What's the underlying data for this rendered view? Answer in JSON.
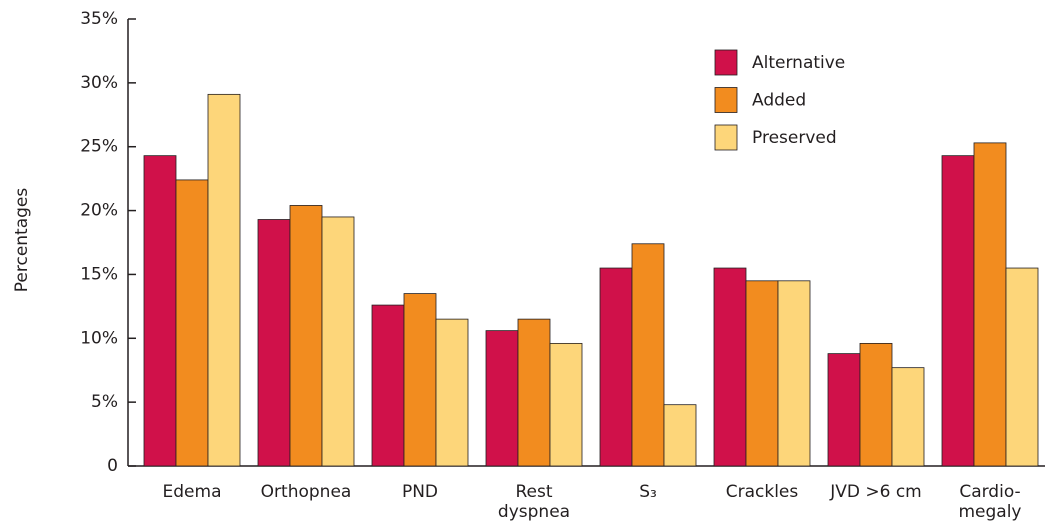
{
  "chart_data": {
    "type": "bar",
    "y_label": "Percentages",
    "categories": [
      "Edema",
      "Orthopnea",
      "PND",
      "Rest dyspnea",
      "S₃",
      "Crackles",
      "JVD >6 cm",
      "Cardio-megaly"
    ],
    "series": [
      {
        "name": "Alternative",
        "color": "#d0114a",
        "values": [
          24.3,
          19.3,
          12.6,
          10.6,
          15.5,
          15.5,
          8.8,
          24.3
        ]
      },
      {
        "name": "Added",
        "color": "#f28c1f",
        "values": [
          22.4,
          20.4,
          13.5,
          11.5,
          17.4,
          14.5,
          9.6,
          25.3
        ]
      },
      {
        "name": "Preserved",
        "color": "#fdd67a",
        "values": [
          29.1,
          19.5,
          11.5,
          9.6,
          4.8,
          14.5,
          7.7,
          15.5
        ]
      }
    ],
    "ylim": [
      0,
      35
    ],
    "yticks": [
      0,
      {
        "value": 5,
        "label": "5%"
      },
      {
        "value": 10,
        "label": "10%"
      },
      {
        "value": 15,
        "label": "15%"
      },
      {
        "value": 20,
        "label": "20%"
      },
      {
        "value": 25,
        "label": "25%"
      },
      {
        "value": 30,
        "label": "30%"
      },
      {
        "value": 35,
        "label": "35%"
      }
    ],
    "grid": false,
    "legend": "upper right"
  }
}
